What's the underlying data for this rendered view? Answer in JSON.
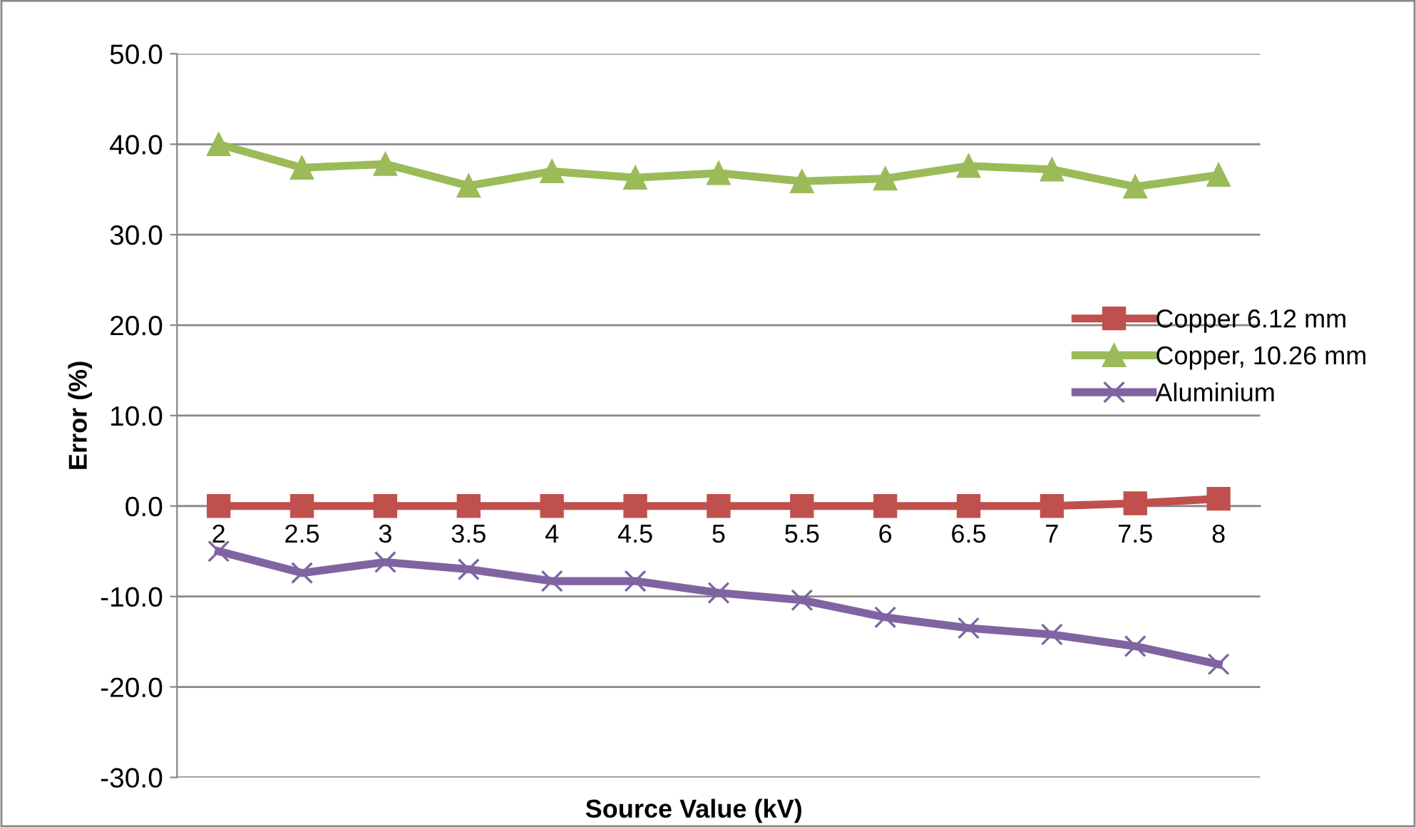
{
  "chart_data": {
    "type": "line",
    "xlabel": "Source Value (kV)",
    "ylabel": "Error (%)",
    "categories": [
      "2",
      "2.5",
      "3",
      "3.5",
      "4",
      "4.5",
      "5",
      "5.5",
      "6",
      "6.5",
      "7",
      "7.5",
      "8"
    ],
    "series": [
      {
        "name": "Copper 6.12 mm",
        "color": "#c0504d",
        "marker": "square",
        "values": [
          0,
          0,
          0,
          0,
          0,
          0,
          0,
          0,
          0,
          0,
          0,
          0.3,
          0.8
        ]
      },
      {
        "name": "Copper, 10.26 mm",
        "color": "#9bbb59",
        "marker": "triangle",
        "values": [
          40.0,
          37.4,
          37.8,
          35.4,
          37.0,
          36.3,
          36.8,
          35.9,
          36.2,
          37.6,
          37.2,
          35.3,
          36.6
        ]
      },
      {
        "name": "Aluminium",
        "color": "#8064a2",
        "marker": "cross",
        "values": [
          -5.0,
          -7.4,
          -6.2,
          -7.0,
          -8.3,
          -8.3,
          -9.6,
          -10.4,
          -12.3,
          -13.5,
          -14.2,
          -15.5,
          -17.5
        ]
      }
    ],
    "ylim": [
      -30,
      50
    ],
    "yticks": [
      {
        "value": -30,
        "label": "-30.0"
      },
      {
        "value": -20,
        "label": "-20.0"
      },
      {
        "value": -10,
        "label": "-10.0"
      },
      {
        "value": 0,
        "label": "0.0"
      },
      {
        "value": 10,
        "label": "10.0"
      },
      {
        "value": 20,
        "label": "20.0"
      },
      {
        "value": 30,
        "label": "30.0"
      },
      {
        "value": 40,
        "label": "40.0"
      },
      {
        "value": 50,
        "label": "50.0"
      }
    ],
    "grid": "y",
    "legend": "right",
    "line_style": "solid"
  }
}
